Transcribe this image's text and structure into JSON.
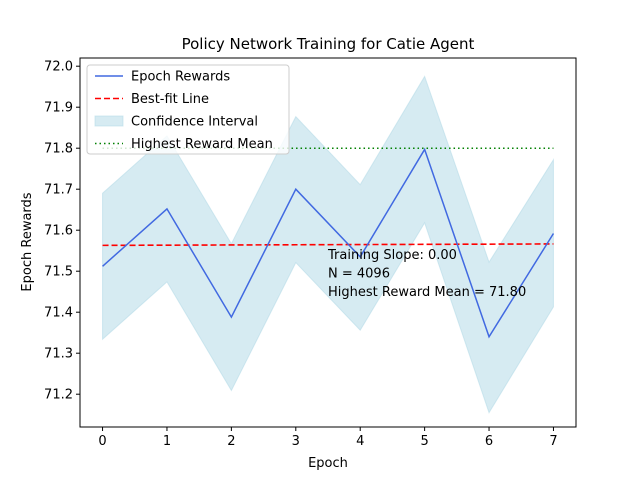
{
  "chart_data": {
    "type": "line",
    "title": "Policy Network Training for Catie Agent",
    "xlabel": "Epoch",
    "ylabel": "Epoch Rewards",
    "x": [
      0,
      1,
      2,
      3,
      4,
      5,
      6,
      7
    ],
    "xlim": [
      -0.35,
      7.35
    ],
    "ylim": [
      71.12,
      72.02
    ],
    "xticks": [
      0,
      1,
      2,
      3,
      4,
      5,
      6,
      7
    ],
    "yticks": [
      71.2,
      71.3,
      71.4,
      71.5,
      71.6,
      71.7,
      71.8,
      71.9,
      72.0
    ],
    "ytick_labels": [
      "71.2",
      "71.3",
      "71.4",
      "71.5",
      "71.6",
      "71.7",
      "71.8",
      "71.9",
      "72.0"
    ],
    "grid": false,
    "legend_position": "top-left",
    "series": [
      {
        "name": "Epoch Rewards",
        "kind": "line",
        "color": "#4169e1",
        "values": [
          71.512,
          71.652,
          71.388,
          71.7,
          71.535,
          71.797,
          71.34,
          71.592
        ]
      },
      {
        "name": "Best-fit Line",
        "kind": "dashed",
        "color": "#ff0000",
        "values": [
          71.563,
          71.5635,
          71.564,
          71.5645,
          71.565,
          71.5655,
          71.566,
          71.5665
        ]
      },
      {
        "name": "Confidence Interval",
        "kind": "band",
        "color": "#add8e6",
        "lower": [
          71.334,
          71.474,
          71.209,
          71.521,
          71.356,
          71.618,
          71.155,
          71.413
        ],
        "upper": [
          71.69,
          71.83,
          71.567,
          71.877,
          71.711,
          71.975,
          71.522,
          71.772
        ]
      },
      {
        "name": "Highest Reward Mean",
        "kind": "dotted",
        "color": "#008000",
        "values": [
          71.8,
          71.8,
          71.8,
          71.8,
          71.8,
          71.8,
          71.8,
          71.8
        ]
      }
    ],
    "annotations": [
      "Training Slope: 0.00",
      "N = 4096",
      "Highest Reward Mean = 71.80"
    ],
    "annotation_anchor": {
      "x": 3.5,
      "y": 71.53
    }
  }
}
